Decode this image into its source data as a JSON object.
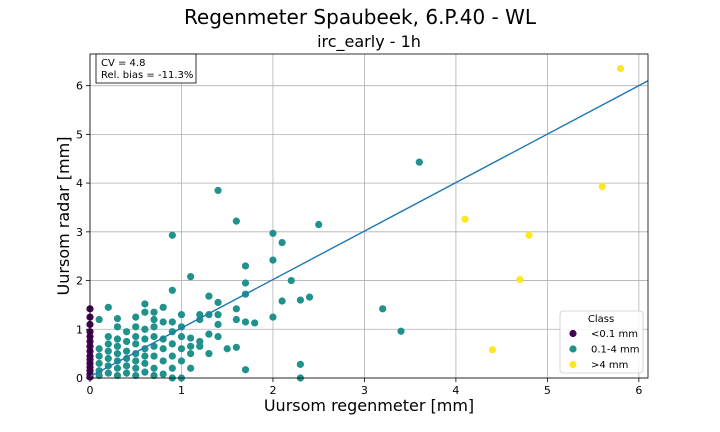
{
  "chart_data": {
    "type": "scatter",
    "title": "Regenmeter Spaubeek, 6.P.40 - WL",
    "subtitle": "irc_early - 1h",
    "xlabel": "Uursom regenmeter [mm]",
    "ylabel": "Uursom radar [mm]",
    "xlim": [
      0,
      6.1
    ],
    "ylim": [
      0,
      6.65
    ],
    "xticks": [
      0,
      1,
      2,
      3,
      4,
      5,
      6
    ],
    "yticks": [
      0,
      1,
      2,
      3,
      4,
      5,
      6
    ],
    "grid": true,
    "stats": {
      "cv": "CV = 4.8",
      "bias": "Rel. bias = -11.3%"
    },
    "legend": {
      "title": "Class",
      "placement": "lower-right"
    },
    "fit_line": {
      "color": "#1f77b4",
      "points": [
        [
          0,
          0.03
        ],
        [
          6.1,
          6.1
        ]
      ]
    },
    "series": [
      {
        "name": "<0.1 mm",
        "color": "#440154",
        "points": [
          [
            0,
            1.42
          ],
          [
            0,
            1.25
          ],
          [
            0,
            1.1
          ],
          [
            0,
            0.95
          ],
          [
            0,
            0.85
          ],
          [
            0,
            0.75
          ],
          [
            0,
            0.65
          ],
          [
            0,
            0.55
          ],
          [
            0,
            0.45
          ],
          [
            0,
            0.38
          ],
          [
            0,
            0.3
          ],
          [
            0,
            0.22
          ],
          [
            0,
            0.15
          ],
          [
            0,
            0.08
          ],
          [
            0,
            0.02
          ]
        ]
      },
      {
        "name": "0.1-4 mm",
        "color": "#21918c",
        "points": [
          [
            0.1,
            1.2
          ],
          [
            0.1,
            0.6
          ],
          [
            0.1,
            0.45
          ],
          [
            0.1,
            0.3
          ],
          [
            0.1,
            0.15
          ],
          [
            0.1,
            0.05
          ],
          [
            0.2,
            1.45
          ],
          [
            0.2,
            0.85
          ],
          [
            0.2,
            0.7
          ],
          [
            0.2,
            0.55
          ],
          [
            0.2,
            0.4
          ],
          [
            0.2,
            0.25
          ],
          [
            0.2,
            0.1
          ],
          [
            0.3,
            1.22
          ],
          [
            0.3,
            1.05
          ],
          [
            0.3,
            0.8
          ],
          [
            0.3,
            0.65
          ],
          [
            0.3,
            0.5
          ],
          [
            0.3,
            0.35
          ],
          [
            0.3,
            0.2
          ],
          [
            0.3,
            0.05
          ],
          [
            0.4,
            0.95
          ],
          [
            0.4,
            0.75
          ],
          [
            0.4,
            0.55
          ],
          [
            0.4,
            0.4
          ],
          [
            0.4,
            0.25
          ],
          [
            0.4,
            0.1
          ],
          [
            0.5,
            1.25
          ],
          [
            0.5,
            1.05
          ],
          [
            0.5,
            0.85
          ],
          [
            0.5,
            0.7
          ],
          [
            0.5,
            0.5
          ],
          [
            0.5,
            0.35
          ],
          [
            0.5,
            0.2
          ],
          [
            0.5,
            0.05
          ],
          [
            0.6,
            1.52
          ],
          [
            0.6,
            1.35
          ],
          [
            0.6,
            1.0
          ],
          [
            0.6,
            0.8
          ],
          [
            0.6,
            0.6
          ],
          [
            0.6,
            0.45
          ],
          [
            0.6,
            0.3
          ],
          [
            0.6,
            0.12
          ],
          [
            0.7,
            1.35
          ],
          [
            0.7,
            1.2
          ],
          [
            0.7,
            1.05
          ],
          [
            0.7,
            0.85
          ],
          [
            0.7,
            0.65
          ],
          [
            0.7,
            0.45
          ],
          [
            0.7,
            0.2
          ],
          [
            0.7,
            0.05
          ],
          [
            0.8,
            1.45
          ],
          [
            0.8,
            1.15
          ],
          [
            0.8,
            0.8
          ],
          [
            0.8,
            0.6
          ],
          [
            0.8,
            0.35
          ],
          [
            0.8,
            0.08
          ],
          [
            0.9,
            2.93
          ],
          [
            0.9,
            1.8
          ],
          [
            0.9,
            1.15
          ],
          [
            0.9,
            0.95
          ],
          [
            0.9,
            0.7
          ],
          [
            0.9,
            0.45
          ],
          [
            0.9,
            0.2
          ],
          [
            0.9,
            0.0
          ],
          [
            1.0,
            1.3
          ],
          [
            1.0,
            1.05
          ],
          [
            1.0,
            0.85
          ],
          [
            1.0,
            0.6
          ],
          [
            1.0,
            0.35
          ],
          [
            1.0,
            0.0
          ],
          [
            1.1,
            2.08
          ],
          [
            1.1,
            0.82
          ],
          [
            1.1,
            0.65
          ],
          [
            1.1,
            0.5
          ],
          [
            1.1,
            0.2
          ],
          [
            1.2,
            1.3
          ],
          [
            1.2,
            1.2
          ],
          [
            1.2,
            0.75
          ],
          [
            1.2,
            0.65
          ],
          [
            1.3,
            1.68
          ],
          [
            1.3,
            1.3
          ],
          [
            1.3,
            0.9
          ],
          [
            1.3,
            0.5
          ],
          [
            1.4,
            3.85
          ],
          [
            1.4,
            1.55
          ],
          [
            1.4,
            1.3
          ],
          [
            1.4,
            1.1
          ],
          [
            1.4,
            0.85
          ],
          [
            1.5,
            0.6
          ],
          [
            1.6,
            3.22
          ],
          [
            1.6,
            1.42
          ],
          [
            1.6,
            1.2
          ],
          [
            1.6,
            0.63
          ],
          [
            1.7,
            2.3
          ],
          [
            1.7,
            1.95
          ],
          [
            1.7,
            1.72
          ],
          [
            1.7,
            1.15
          ],
          [
            1.7,
            0.17
          ],
          [
            1.8,
            1.13
          ],
          [
            2.0,
            2.97
          ],
          [
            2.0,
            2.42
          ],
          [
            2.0,
            1.25
          ],
          [
            2.1,
            2.78
          ],
          [
            2.1,
            1.58
          ],
          [
            2.2,
            2.0
          ],
          [
            2.3,
            1.6
          ],
          [
            2.3,
            0.28
          ],
          [
            2.3,
            0.0
          ],
          [
            2.4,
            1.66
          ],
          [
            2.5,
            3.15
          ],
          [
            3.2,
            1.42
          ],
          [
            3.4,
            0.96
          ],
          [
            3.6,
            4.43
          ]
        ]
      },
      {
        "name": ">4 mm",
        "color": "#fde725",
        "points": [
          [
            4.1,
            3.26
          ],
          [
            4.4,
            0.58
          ],
          [
            4.7,
            2.02
          ],
          [
            4.8,
            2.93
          ],
          [
            5.6,
            3.93
          ],
          [
            5.8,
            6.35
          ]
        ]
      }
    ]
  }
}
